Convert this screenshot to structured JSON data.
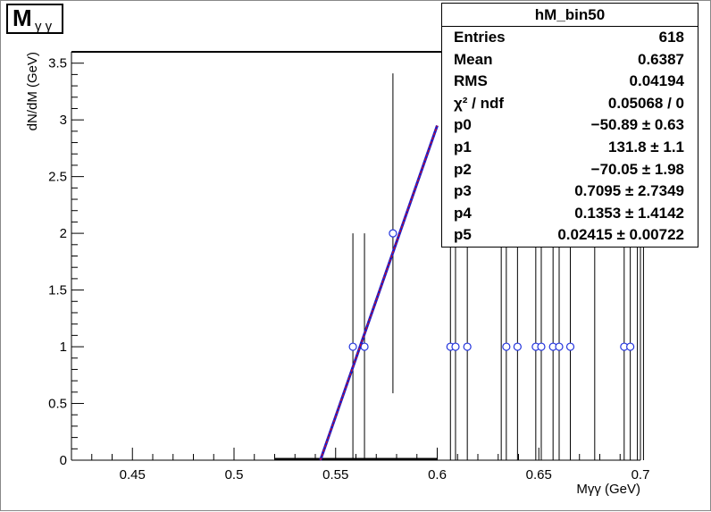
{
  "title": {
    "main": "M",
    "sub": "γ  γ"
  },
  "stats_box": {
    "name": "hM_bin50",
    "rows": [
      {
        "key": "Entries",
        "value": "618"
      },
      {
        "key": "Mean",
        "value": "0.6387"
      },
      {
        "key": "RMS",
        "value": "0.04194"
      },
      {
        "key": "χ² / ndf",
        "value": "0.05068 / 0"
      },
      {
        "key": "p0",
        "value": "−50.89 ± 0.63"
      },
      {
        "key": "p1",
        "value": "131.8 ± 1.1"
      },
      {
        "key": "p2",
        "value": "−70.05 ± 1.98"
      },
      {
        "key": "p3",
        "value": "0.7095 ± 2.7349"
      },
      {
        "key": "p4",
        "value": "0.1353 ± 1.4142"
      },
      {
        "key": "p5",
        "value": "0.02415 ± 0.00722"
      }
    ]
  },
  "colors": {
    "marker": "#2233dd",
    "fit_line": "#dd1111",
    "fit_overlay": "#1a1acc",
    "axis": "#000000"
  },
  "chart_data": {
    "type": "scatter",
    "xlabel": "Mγγ (GeV)",
    "ylabel": "dN/dM (GeV)",
    "xlim": [
      0.42,
      0.7
    ],
    "ylim": [
      0,
      3.6
    ],
    "x_ticks": [
      0.45,
      0.5,
      0.55,
      0.6,
      0.65,
      0.7
    ],
    "x_tick_labels": [
      "0.45",
      "0.5",
      "0.55",
      "0.6",
      "0.65",
      "0.7"
    ],
    "y_ticks": [
      0,
      0.5,
      1,
      1.5,
      2,
      2.5,
      3,
      3.5
    ],
    "y_tick_labels": [
      "0",
      "0.5",
      "1",
      "1.5",
      "2",
      "2.5",
      "3",
      "3.5"
    ],
    "points": [
      {
        "x": 0.5585,
        "y": 1,
        "err": 1
      },
      {
        "x": 0.5642,
        "y": 1,
        "err": 1
      },
      {
        "x": 0.5782,
        "y": 2,
        "err": 1.41
      },
      {
        "x": 0.6065,
        "y": 1,
        "err": 1
      },
      {
        "x": 0.609,
        "y": 1,
        "err": 1
      },
      {
        "x": 0.6148,
        "y": 1,
        "err": 1
      },
      {
        "x": 0.634,
        "y": 1,
        "err": 1
      },
      {
        "x": 0.6395,
        "y": 1,
        "err": 1
      },
      {
        "x": 0.6485,
        "y": 1,
        "err": 1
      },
      {
        "x": 0.6512,
        "y": 1,
        "err": 1
      },
      {
        "x": 0.657,
        "y": 1,
        "err": 1
      },
      {
        "x": 0.66,
        "y": 1,
        "err": 1
      },
      {
        "x": 0.6655,
        "y": 1,
        "err": 1
      },
      {
        "x": 0.692,
        "y": 1,
        "err": 1
      },
      {
        "x": 0.695,
        "y": 1,
        "err": 1
      }
    ],
    "extra_error_bars": [
      {
        "x": 0.6315,
        "y": 1,
        "err": 1
      },
      {
        "x": 0.6775,
        "y": 1,
        "err": 1
      },
      {
        "x": 0.6985,
        "y": 1,
        "err": 1
      },
      {
        "x": 0.7015,
        "y": 1,
        "err": 1
      }
    ],
    "fit_line": {
      "x_start": 0.5425,
      "y_start": 0,
      "x_end": 0.6,
      "y_end": 2.95
    },
    "baseline_segment": {
      "x_start": 0.52,
      "x_end": 0.6,
      "y": 0
    }
  }
}
